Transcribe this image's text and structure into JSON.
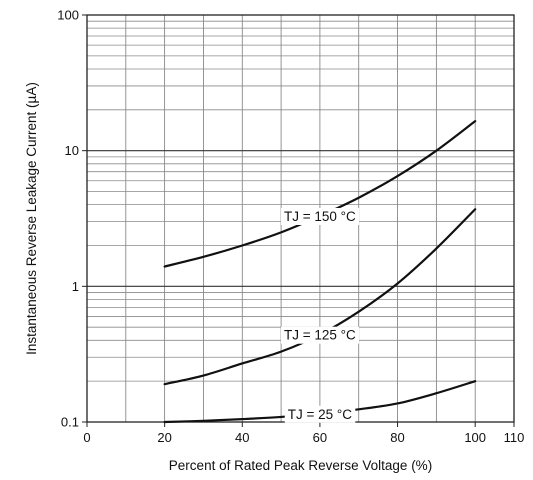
{
  "chart_data": {
    "type": "line",
    "xlabel": "Percent of Rated Peak Reverse Voltage (%)",
    "ylabel": "Instantaneous Reverse Leakage Current (µA)",
    "xlim": [
      0,
      110
    ],
    "ylim": [
      0.1,
      100
    ],
    "y_scale": "log",
    "grid": true,
    "x_ticks": [
      "0",
      "20",
      "40",
      "60",
      "80",
      "100",
      "110"
    ],
    "y_ticks": [
      "0.1",
      "1",
      "10",
      "100"
    ],
    "series": [
      {
        "name": "TJ = 150 °C",
        "x": [
          20,
          30,
          40,
          50,
          60,
          70,
          80,
          90,
          100
        ],
        "y": [
          1.4,
          1.65,
          2.0,
          2.5,
          3.3,
          4.5,
          6.5,
          10.0,
          16.5
        ]
      },
      {
        "name": "TJ = 125 °C",
        "x": [
          20,
          30,
          40,
          50,
          60,
          70,
          80,
          90,
          100
        ],
        "y": [
          0.19,
          0.22,
          0.27,
          0.33,
          0.44,
          0.65,
          1.05,
          1.9,
          3.7
        ]
      },
      {
        "name": "TJ = 25 °C",
        "x": [
          20,
          30,
          40,
          50,
          60,
          70,
          80,
          90,
          100
        ],
        "y": [
          0.1,
          0.102,
          0.105,
          0.109,
          0.115,
          0.124,
          0.137,
          0.163,
          0.2
        ]
      }
    ]
  }
}
